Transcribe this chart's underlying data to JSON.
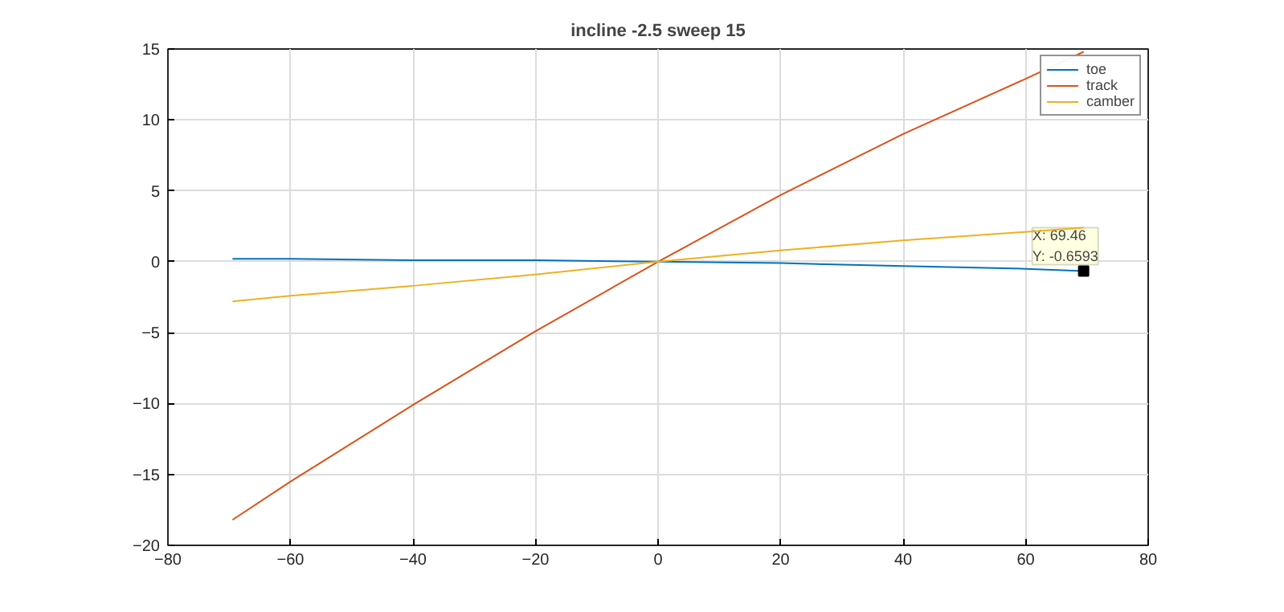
{
  "chart_data": {
    "type": "line",
    "title": "incline -2.5 sweep 15",
    "xlim": [
      -80,
      80
    ],
    "xticks": [
      -80,
      -60,
      -40,
      -20,
      0,
      20,
      40,
      60,
      80
    ],
    "ylim": [
      -20,
      15
    ],
    "yticks": [
      -20,
      -15,
      -10,
      -5,
      0,
      5,
      10,
      15
    ],
    "grid": true,
    "legend": "top right",
    "series": [
      {
        "name": "toe",
        "color": "#0072bd",
        "x": [
          -69.46,
          -60,
          -40,
          -20,
          0,
          20,
          40,
          60,
          69.46
        ],
        "values": [
          0.2,
          0.2,
          0.1,
          0.1,
          0,
          -0.1,
          -0.3,
          -0.5,
          -0.6593
        ]
      },
      {
        "name": "track",
        "color": "#d95319",
        "x": [
          -69.46,
          -60,
          -40,
          -20,
          0,
          20,
          40,
          60,
          69.46
        ],
        "values": [
          -18.2,
          -15.5,
          -10.1,
          -4.9,
          0,
          4.7,
          9.0,
          12.9,
          14.8
        ]
      },
      {
        "name": "camber",
        "color": "#edb120",
        "x": [
          -69.46,
          -60,
          -40,
          -20,
          0,
          20,
          40,
          60,
          69.46
        ],
        "values": [
          -2.8,
          -2.4,
          -1.7,
          -0.9,
          0,
          0.8,
          1.5,
          2.1,
          2.4
        ]
      }
    ],
    "annotations": [
      {
        "text": "X: 69.46\nY: -0.6593",
        "x": 69.46,
        "y": -0.6593
      }
    ]
  }
}
